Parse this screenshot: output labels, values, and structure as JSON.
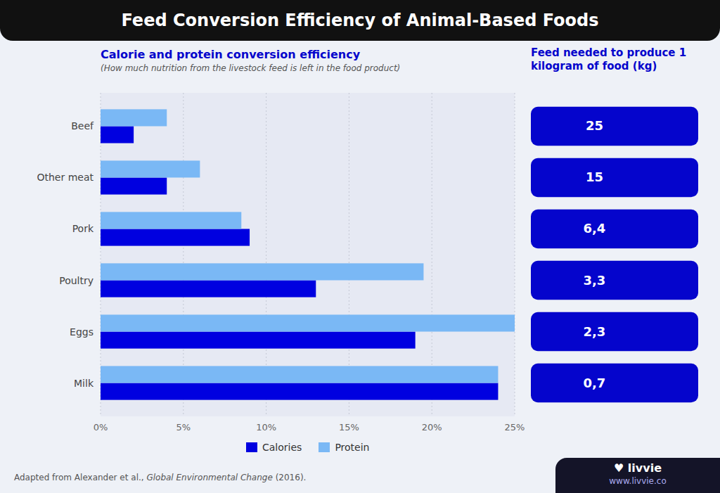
{
  "title": "Feed Conversion Efficiency of Animal-Based Foods",
  "annotations": [
    "Adapted from Alexander et al., ",
    "Global Environmental Change",
    " (2016).",
    "♥ livvie",
    "www.livvie.co"
  ],
  "chart_data": [
    {
      "type": "bar",
      "orientation": "horizontal",
      "title": "Calorie and protein conversion efficiency",
      "subtitle": "(How much nutrition from the livestock feed is left in the food product)",
      "categories": [
        "Beef",
        "Other meat",
        "Pork",
        "Poultry",
        "Eggs",
        "Milk"
      ],
      "series": [
        {
          "name": "Calories",
          "color": "#0000e0",
          "values": [
            2.0,
            4.0,
            9.0,
            13.0,
            19.0,
            24.0
          ]
        },
        {
          "name": "Protein",
          "color": "#7ab8f5",
          "values": [
            4.0,
            6.0,
            8.5,
            19.5,
            25.0,
            24.0
          ]
        }
      ],
      "xlim": [
        0,
        25
      ],
      "xticks": [
        {
          "value": 0,
          "label": "0%"
        },
        {
          "value": 5,
          "label": "5%"
        },
        {
          "value": 10,
          "label": "10%"
        },
        {
          "value": 15,
          "label": "15%"
        },
        {
          "value": 20,
          "label": "20%"
        },
        {
          "value": 25,
          "label": "25%"
        }
      ],
      "grid": true,
      "legend": "bottom"
    },
    {
      "type": "table",
      "title": "Feed needed to produce 1 kilogram of food (kg)",
      "values": [
        25,
        15,
        6.4,
        3.3,
        2.3,
        0.7
      ],
      "value_labels": [
        "25",
        "15",
        "6,4",
        "3,3",
        "2,3",
        "0,7"
      ],
      "data_labels": true,
      "tick_labels": false,
      "color": "#0505cc"
    }
  ]
}
